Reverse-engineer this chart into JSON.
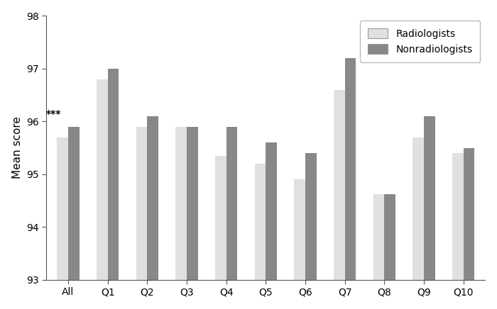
{
  "categories": [
    "All",
    "Q1",
    "Q2",
    "Q3",
    "Q4",
    "Q5",
    "Q6",
    "Q7",
    "Q8",
    "Q9",
    "Q10"
  ],
  "radiologists": [
    95.7,
    96.8,
    95.9,
    95.9,
    95.35,
    95.2,
    94.9,
    96.6,
    94.62,
    95.7,
    95.4
  ],
  "nonradiologists": [
    95.9,
    97.0,
    96.1,
    95.9,
    95.9,
    95.6,
    95.4,
    97.2,
    94.62,
    96.1,
    95.5
  ],
  "radiologist_color": "#e0e0e0",
  "nonradiologist_color": "#888888",
  "bar_edge_color": "none",
  "ylim": [
    93,
    98
  ],
  "yticks": [
    93,
    94,
    95,
    96,
    97,
    98
  ],
  "ylabel": "Mean score",
  "annotation_text": "***",
  "legend_labels": [
    "Radiologists",
    "Nonradiologists"
  ],
  "bar_width": 0.28,
  "title": ""
}
